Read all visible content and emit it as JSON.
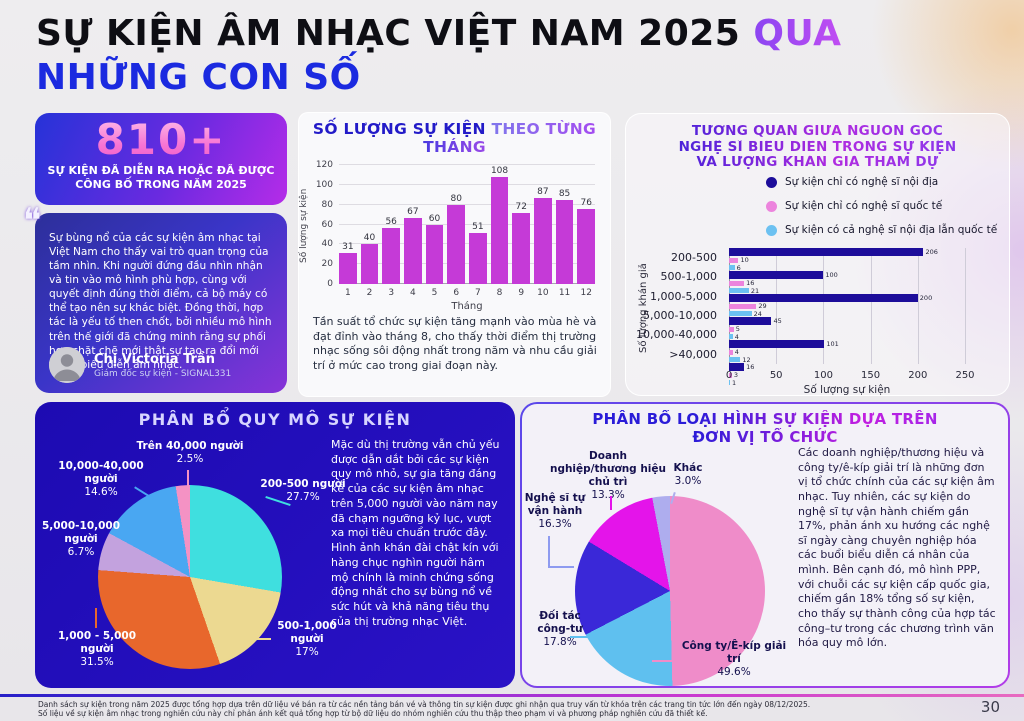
{
  "header": {
    "title_black": "SỰ KIỆN ÂM NHẠC VIỆT NAM 2025 ",
    "title_accent": "QUA",
    "title_line2": "NHỮNG CON SỐ"
  },
  "stat_card": {
    "value": "810+",
    "label": "SỰ KIỆN ĐÃ DIỄN RA HOẶC ĐÃ ĐƯỢC CÔNG BỐ TRONG NĂM 2025"
  },
  "quote_card": {
    "quote_icon": "❝",
    "quote": "Sự bùng nổ của các sự kiện âm nhạc tại Việt Nam cho thấy vai trò quan trọng của tầm nhìn. Khi người đứng đầu nhìn nhận và tin vào mô hình phù hợp, cùng với quyết định đúng thời điểm, cả bộ máy có thể tạo nên sự khác biệt. Đồng thời, hợp tác là yếu tố then chốt, bởi nhiều mô hình trên thế giới đã chứng minh rằng sự phối hợp chặt chẽ mới thật sự tạo ra đổi mới trong biểu diễn âm nhạc.",
    "name": "Chị Victoria Trần",
    "role": "Giám đốc sự kiện - SIGNAL331"
  },
  "footer": {
    "line1": "Danh sách sự kiện trong năm 2025 được tổng hợp dựa trên dữ liệu vé bán ra từ các nền tảng bán vé và thông tin sự kiện được ghi nhận qua truy vấn từ khóa trên các trang tin tức lớn đến ngày 08/12/2025.",
    "line2": "Số liệu về sự kiện âm nhạc trong nghiên cứu này chỉ phản ánh kết quả tổng hợp từ bộ dữ liệu do nhóm nghiên cứu thu thập theo phạm vi và phương pháp nghiên cứu đã thiết kế.",
    "page_number": "30"
  },
  "colors": {
    "accent_blue": "#1b2ae0",
    "accent_purple": "#8b45f2",
    "navy_card": "#1d0bb2",
    "bar_magenta": "#c53ad7"
  },
  "chart_data": [
    {
      "type": "bar",
      "title": "SỐ LƯỢNG SỰ KIỆN THEO TỪNG THÁNG",
      "title_part1": "SỐ LƯỢNG SỰ KIỆN ",
      "title_part2": "THEO TỪNG",
      "title_part3": "THÁNG",
      "categories": [
        "1",
        "2",
        "3",
        "4",
        "5",
        "6",
        "7",
        "8",
        "9",
        "10",
        "11",
        "12"
      ],
      "values": [
        31,
        40,
        56,
        67,
        60,
        80,
        51,
        108,
        72,
        87,
        85,
        76
      ],
      "xlabel": "Tháng",
      "ylabel": "Số lượng sự kiện",
      "ylim": [
        0,
        120
      ],
      "yticks": [
        0,
        20,
        40,
        60,
        80,
        100,
        120
      ],
      "bar_color": "#c53ad7",
      "grid": true,
      "caption": "Tần suất tổ chức sự kiện tăng mạnh vào mùa hè và đạt đỉnh vào tháng 8, cho thấy thời điểm thị trường nhạc sống sôi động nhất trong năm và nhu cầu giải trí ở mức cao trong giai đoạn này."
    },
    {
      "type": "grouped_bar_horizontal",
      "title": "TƯƠNG QUAN GIỮA NGUỒN GỐC NGHỆ SĨ BIỂU DIỄN TRONG SỰ KIỆN VÀ LƯỢNG KHÁN GIẢ THAM DỰ",
      "title_lines": [
        "TƯƠNG QUAN GIỮA NGUỒN GỐC",
        "NGHỆ SĨ BIỂU DIỄN TRONG SỰ KIỆN",
        "VÀ LƯỢNG KHÁN GIẢ THAM DỰ"
      ],
      "categories": [
        "200-500",
        "500-1,000",
        "1,000-5,000",
        "5,000-10,000",
        "10,000-40,000",
        ">40,000"
      ],
      "series": [
        {
          "name": "Sự kiện chỉ có nghệ sĩ nội địa",
          "color": "#1d0d9a",
          "values": [
            206,
            100,
            200,
            45,
            101,
            16
          ]
        },
        {
          "name": "Sự kiện chỉ có nghệ sĩ quốc tế",
          "color": "#ec84dd",
          "pattern": "dots",
          "values": [
            10,
            16,
            29,
            5,
            4,
            3
          ]
        },
        {
          "name": "Sự kiện có cả nghệ sĩ nội địa lẫn quốc tế",
          "color": "#6cc1f1",
          "values": [
            6,
            21,
            24,
            4,
            12,
            1
          ]
        }
      ],
      "xlabel": "Số lượng sự kiện",
      "ylabel": "Số lượng khán giả",
      "xlim": [
        0,
        250
      ],
      "xticks": [
        0,
        50,
        100,
        150,
        200,
        250
      ],
      "legend_position": "top",
      "grid": true
    },
    {
      "type": "pie",
      "title": "PHÂN BỔ QUY MÔ SỰ KIỆN",
      "slices": [
        {
          "label": "200-500 người",
          "pct": 27.7,
          "pct_label": "27.7%",
          "color": "#3fdfdf"
        },
        {
          "label": "500-1,000 người",
          "pct": 17,
          "pct_label": "17%",
          "color": "#ecd991"
        },
        {
          "label": "1,000 - 5,000 người",
          "pct": 31.5,
          "pct_label": "31.5%",
          "color": "#e8672c"
        },
        {
          "label": "5,000-10,000 người",
          "pct": 6.7,
          "pct_label": "6.7%",
          "color": "#c3a2de"
        },
        {
          "label": "10,000-40,000 người",
          "pct": 14.6,
          "pct_label": "14.6%",
          "color": "#49a7f2"
        },
        {
          "label": "Trên 40,000 người",
          "pct": 2.5,
          "pct_label": "2.5%",
          "color": "#f492c4"
        }
      ],
      "description": "Mặc dù thị trường vẫn chủ yếu được dẫn dắt bởi các sự kiện quy mô nhỏ, sự gia tăng đáng kể của các sự kiện âm nhạc trên 5,000 người vào năm nay đã chạm ngưỡng kỷ lục, vượt xa mọi tiêu chuẩn trước đây. Hình ảnh khán đài chật kín với hàng chục nghìn người hâm mộ chính là minh chứng sống động nhất cho sự bùng nổ về sức hút và khả năng tiêu thụ của thị trường nhạc Việt."
    },
    {
      "type": "pie",
      "title": "PHÂN BỔ LOẠI HÌNH SỰ KIỆN DỰA TRÊN ĐƠN VỊ TỔ CHỨC",
      "title_line1": "PHÂN BỔ LOẠI HÌNH SỰ KIỆN DỰA TRÊN",
      "title_line2": "ĐƠN VỊ TỔ CHỨC",
      "slices": [
        {
          "label": "Công ty/Ê-kíp giải trí",
          "pct": 49.6,
          "pct_label": "49.6%",
          "color": "#ef8cc9"
        },
        {
          "label": "Đối tác công-tư",
          "pct": 17.8,
          "pct_label": "17.8%",
          "color": "#5fc0ef"
        },
        {
          "label": "Nghệ sĩ tự vận hành",
          "pct": 16.3,
          "pct_label": "16.3%",
          "color": "#3a28d8"
        },
        {
          "label": "Doanh nghiệp/thương hiệu chủ trì",
          "pct": 13.3,
          "pct_label": "13.3%",
          "color": "#e414ea"
        },
        {
          "label": "Khác",
          "pct": 3.0,
          "pct_label": "3.0%",
          "color": "#aeadee"
        }
      ],
      "description": "Các doanh nghiệp/thương hiệu và công ty/ê-kíp giải trí là những đơn vị tổ chức chính của các sự kiện âm nhạc. Tuy nhiên, các sự kiện do nghệ sĩ tự vận hành chiếm gần 17%, phản ánh xu hướng các nghệ sĩ ngày càng chuyên nghiệp hóa các buổi biểu diễn cá nhân của mình. Bên cạnh đó, mô hình PPP, với chuỗi các sự kiện cấp quốc gia, chiếm gần 18% tổng số sự kiện, cho thấy sự thành công của hợp tác công–tư trong các chương trình văn hóa quy mô lớn."
    }
  ]
}
